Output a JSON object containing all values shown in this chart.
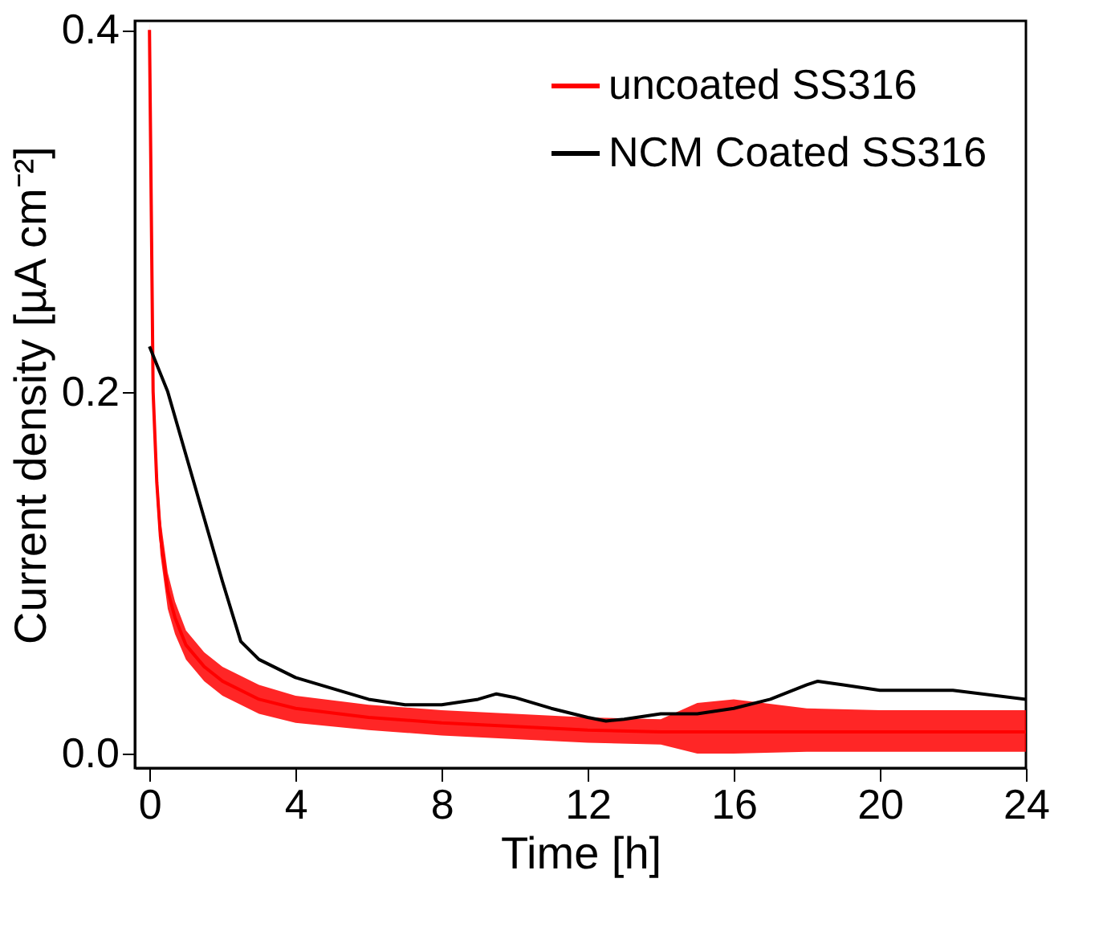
{
  "chart_data": {
    "type": "line",
    "xlabel": "Time [h]",
    "ylabel": "Current density [µA cm⁻²]",
    "xlim": [
      -0.4,
      24
    ],
    "ylim": [
      -0.008,
      0.405
    ],
    "xticks": [
      0,
      4,
      8,
      12,
      16,
      20,
      24
    ],
    "yticks": [
      {
        "value": 0,
        "label": "0.0"
      },
      0.2,
      0.4
    ],
    "legend": "top right",
    "grid": false,
    "line_style": "solid",
    "marker": "none",
    "series": [
      {
        "name": "uncoated SS316",
        "color": "#ff0000",
        "x": [
          0,
          0.05,
          0.1,
          0.2,
          0.3,
          0.5,
          0.7,
          1,
          1.5,
          2,
          3,
          4,
          6,
          8,
          10,
          12,
          14,
          15,
          16,
          18,
          20,
          22,
          24
        ],
        "values": [
          0.4,
          0.3,
          0.2,
          0.15,
          0.12,
          0.09,
          0.075,
          0.06,
          0.048,
          0.04,
          0.03,
          0.025,
          0.02,
          0.017,
          0.015,
          0.013,
          0.012,
          0.012,
          0.012,
          0.012,
          0.012,
          0.012,
          0.012
        ],
        "lower": [
          0.39,
          0.29,
          0.19,
          0.14,
          0.11,
          0.08,
          0.066,
          0.052,
          0.04,
          0.032,
          0.022,
          0.017,
          0.013,
          0.01,
          0.008,
          0.006,
          0.005,
          0.0,
          0.0,
          0.001,
          0.001,
          0.001,
          0.001
        ],
        "upper": [
          0.405,
          0.31,
          0.21,
          0.16,
          0.13,
          0.1,
          0.084,
          0.068,
          0.056,
          0.048,
          0.038,
          0.032,
          0.027,
          0.024,
          0.022,
          0.02,
          0.019,
          0.028,
          0.03,
          0.025,
          0.024,
          0.024,
          0.024
        ]
      },
      {
        "name": "NCM Coated SS316",
        "color": "#000000",
        "x": [
          0,
          0.5,
          1,
          1.5,
          2,
          2.5,
          3,
          4,
          5,
          6,
          7,
          8,
          9,
          9.5,
          10,
          11,
          12,
          12.5,
          13,
          14,
          15,
          16,
          17,
          18,
          18.3,
          19,
          20,
          22,
          24
        ],
        "values": [
          0.225,
          0.2,
          0.165,
          0.13,
          0.095,
          0.062,
          0.052,
          0.042,
          0.036,
          0.03,
          0.027,
          0.027,
          0.03,
          0.033,
          0.031,
          0.025,
          0.02,
          0.018,
          0.019,
          0.022,
          0.022,
          0.025,
          0.03,
          0.038,
          0.04,
          0.038,
          0.035,
          0.035,
          0.03
        ]
      }
    ]
  }
}
